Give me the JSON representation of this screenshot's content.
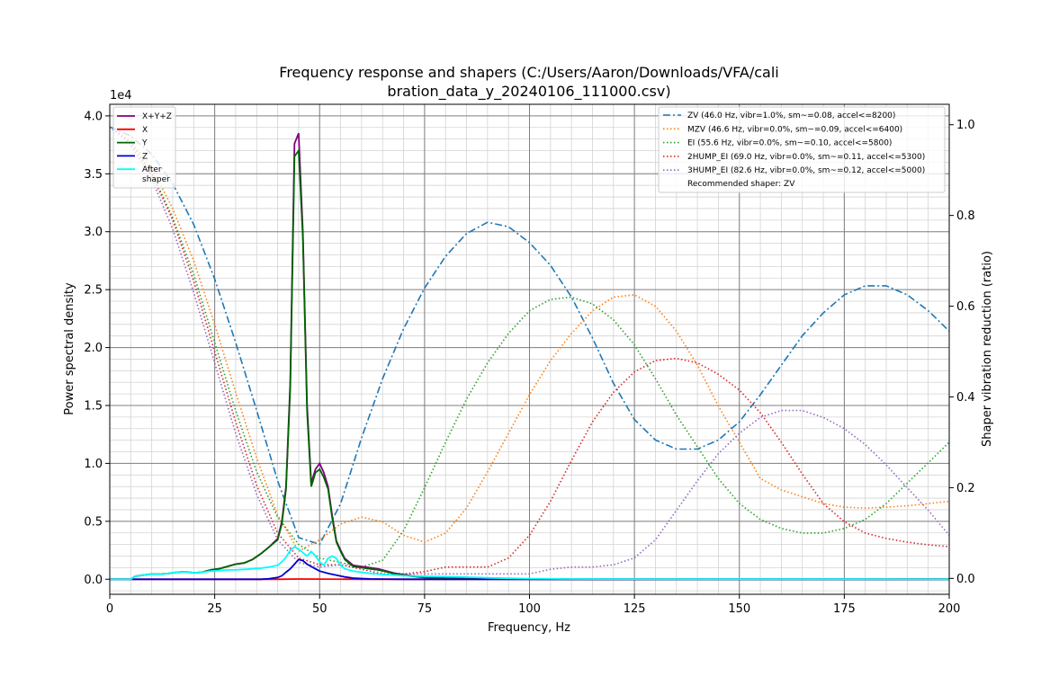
{
  "chart_data": {
    "type": "line",
    "title_line1": "Frequency response and shapers (C:/Users/Aaron/Downloads/VFA/cali",
    "title_line2": "bration_data_y_20240106_111000.csv)",
    "xlabel": "Frequency, Hz",
    "ylabel": "Power spectral density",
    "y2label": "Shaper vibration reduction (ratio)",
    "y_offset_label": "1e4",
    "xlim": [
      0,
      200
    ],
    "ylim": [
      -1300,
      41000
    ],
    "y2lim": [
      -0.035,
      1.045
    ],
    "x_ticks": [
      0,
      25,
      50,
      75,
      100,
      125,
      150,
      175,
      200
    ],
    "x_tick_labels": [
      "0",
      "25",
      "50",
      "75",
      "100",
      "125",
      "150",
      "175",
      "200"
    ],
    "y_ticks": [
      0,
      5000,
      10000,
      15000,
      20000,
      25000,
      30000,
      35000,
      40000
    ],
    "y_tick_labels": [
      "0.0",
      "0.5",
      "1.0",
      "1.5",
      "2.0",
      "2.5",
      "3.0",
      "3.5",
      "4.0"
    ],
    "y2_ticks": [
      0,
      0.2,
      0.4,
      0.6,
      0.8,
      1.0
    ],
    "y2_tick_labels": [
      "0.0",
      "0.2",
      "0.4",
      "0.6",
      "0.8",
      "1.0"
    ],
    "grid": true,
    "legend_left_placement": "upper-left",
    "legend_right_placement": "upper-right",
    "recommended_text": "Recommended shaper: ZV",
    "psd_series": [
      {
        "name": "X+Y+Z",
        "color": "#800080",
        "x": [
          0,
          5,
          6,
          8,
          10,
          12,
          14,
          16,
          18,
          20,
          22,
          24,
          26,
          28,
          30,
          32,
          34,
          36,
          38,
          40,
          41,
          42,
          43,
          44,
          45,
          46,
          47,
          48,
          49,
          50,
          51,
          52,
          53,
          54,
          55,
          56,
          58,
          60,
          62,
          64,
          66,
          68,
          70,
          72,
          75,
          80,
          85,
          90,
          95,
          100,
          110,
          120,
          140,
          160,
          180,
          200
        ],
        "y": [
          0,
          0,
          250,
          350,
          450,
          450,
          500,
          600,
          650,
          550,
          600,
          800,
          900,
          1100,
          1300,
          1400,
          1700,
          2200,
          2800,
          3500,
          5000,
          8000,
          17000,
          37600,
          38500,
          30000,
          15000,
          8300,
          9500,
          10000,
          9200,
          8000,
          5500,
          3300,
          2500,
          1800,
          1200,
          1100,
          1000,
          900,
          700,
          500,
          400,
          300,
          200,
          100,
          50,
          30,
          20,
          10,
          0,
          0,
          0,
          0,
          0,
          0
        ]
      },
      {
        "name": "X",
        "color": "#ff0000",
        "x": [
          0,
          40,
          45,
          50,
          60,
          100,
          200
        ],
        "y": [
          0,
          0,
          20,
          10,
          0,
          0,
          0
        ]
      },
      {
        "name": "Y",
        "color": "#006400",
        "x": [
          0,
          5,
          6,
          8,
          10,
          12,
          14,
          16,
          18,
          20,
          22,
          24,
          26,
          28,
          30,
          32,
          34,
          36,
          38,
          40,
          41,
          42,
          43,
          44,
          45,
          46,
          47,
          48,
          49,
          50,
          51,
          52,
          53,
          54,
          55,
          56,
          58,
          60,
          62,
          64,
          66,
          68,
          70,
          72,
          75,
          80,
          85,
          90,
          95,
          100,
          110,
          120,
          140,
          160,
          180,
          200
        ],
        "y": [
          0,
          0,
          250,
          350,
          450,
          450,
          500,
          600,
          650,
          550,
          600,
          800,
          900,
          1100,
          1300,
          1400,
          1700,
          2200,
          2800,
          3400,
          4800,
          7800,
          16500,
          36500,
          37000,
          29500,
          14500,
          8000,
          9200,
          9500,
          8800,
          7800,
          5300,
          3200,
          2400,
          1700,
          1100,
          1000,
          900,
          800,
          650,
          450,
          350,
          250,
          150,
          80,
          40,
          20,
          10,
          5,
          0,
          0,
          0,
          0,
          0,
          0
        ]
      },
      {
        "name": "Z",
        "color": "#0000cd",
        "x": [
          0,
          36,
          38,
          40,
          41,
          42,
          43,
          44,
          45,
          46,
          47,
          48,
          49,
          50,
          52,
          54,
          56,
          58,
          60,
          62,
          65,
          70,
          80,
          100,
          200
        ],
        "y": [
          0,
          0,
          50,
          150,
          300,
          600,
          900,
          1300,
          1700,
          1600,
          1300,
          1100,
          900,
          700,
          500,
          350,
          200,
          100,
          60,
          30,
          10,
          0,
          0,
          0,
          0
        ]
      },
      {
        "name": "After\nshaper",
        "color": "#00ffff",
        "x": [
          0,
          5,
          6,
          8,
          10,
          12,
          14,
          16,
          18,
          20,
          22,
          24,
          26,
          28,
          30,
          32,
          34,
          36,
          38,
          40,
          41,
          42,
          43,
          44,
          45,
          46,
          47,
          48,
          49,
          50,
          51,
          52,
          53,
          54,
          55,
          56,
          58,
          60,
          62,
          64,
          66,
          68,
          70,
          72,
          75,
          80,
          85,
          90,
          95,
          100,
          110,
          120,
          140,
          160,
          180,
          200
        ],
        "y": [
          0,
          0,
          250,
          350,
          450,
          450,
          500,
          600,
          650,
          550,
          600,
          700,
          750,
          800,
          800,
          850,
          900,
          950,
          1050,
          1200,
          1500,
          1900,
          2500,
          2800,
          2600,
          2300,
          2000,
          2400,
          2000,
          1500,
          1200,
          1800,
          2000,
          1800,
          1200,
          900,
          700,
          600,
          500,
          450,
          400,
          350,
          300,
          280,
          250,
          220,
          180,
          120,
          80,
          50,
          20,
          10,
          5,
          2,
          1,
          0
        ]
      }
    ],
    "shaper_series": [
      {
        "name": "ZV (46.0 Hz, vibr=1.0%, sm~=0.08, accel<=8200)",
        "color": "#1f77b4",
        "dash": "dashdot",
        "x": [
          0,
          5,
          10,
          15,
          20,
          25,
          30,
          35,
          40,
          45,
          50,
          55,
          60,
          65,
          70,
          75,
          80,
          85,
          90,
          95,
          100,
          105,
          110,
          115,
          120,
          125,
          130,
          135,
          140,
          145,
          150,
          155,
          160,
          165,
          170,
          175,
          180,
          185,
          190,
          195,
          200
        ],
        "y": [
          0.995,
          0.975,
          0.935,
          0.87,
          0.78,
          0.66,
          0.52,
          0.37,
          0.215,
          0.09,
          0.075,
          0.165,
          0.31,
          0.44,
          0.55,
          0.64,
          0.71,
          0.76,
          0.785,
          0.775,
          0.74,
          0.69,
          0.62,
          0.53,
          0.43,
          0.35,
          0.305,
          0.285,
          0.285,
          0.305,
          0.345,
          0.405,
          0.47,
          0.535,
          0.585,
          0.625,
          0.645,
          0.645,
          0.625,
          0.59,
          0.545
        ]
      },
      {
        "name": "MZV (46.6 Hz, vibr=0.0%, sm~=0.09, accel<=6400)",
        "color": "#ff7f0e",
        "dash": "dotted",
        "x": [
          0,
          5,
          10,
          15,
          20,
          25,
          30,
          35,
          40,
          45,
          50,
          55,
          60,
          65,
          70,
          75,
          80,
          85,
          90,
          95,
          100,
          105,
          110,
          115,
          120,
          125,
          130,
          135,
          140,
          145,
          150,
          155,
          160,
          165,
          170,
          175,
          180,
          185,
          190,
          195,
          200
        ],
        "y": [
          0.995,
          0.965,
          0.905,
          0.815,
          0.7,
          0.56,
          0.41,
          0.265,
          0.14,
          0.06,
          0.085,
          0.12,
          0.135,
          0.125,
          0.095,
          0.08,
          0.1,
          0.155,
          0.235,
          0.32,
          0.405,
          0.48,
          0.54,
          0.59,
          0.62,
          0.625,
          0.6,
          0.545,
          0.47,
          0.38,
          0.3,
          0.22,
          0.195,
          0.18,
          0.165,
          0.157,
          0.155,
          0.157,
          0.16,
          0.165,
          0.17
        ]
      },
      {
        "name": "EI (55.6 Hz, vibr=0.0%, sm~=0.10, accel<=5800)",
        "color": "#2ca02c",
        "dash": "dotted",
        "x": [
          0,
          5,
          10,
          15,
          20,
          25,
          30,
          35,
          40,
          45,
          50,
          55,
          60,
          65,
          70,
          75,
          80,
          85,
          90,
          95,
          100,
          105,
          110,
          115,
          120,
          125,
          130,
          135,
          140,
          145,
          150,
          155,
          160,
          165,
          170,
          175,
          180,
          185,
          190,
          195,
          200
        ],
        "y": [
          0.995,
          0.96,
          0.895,
          0.795,
          0.67,
          0.52,
          0.37,
          0.235,
          0.135,
          0.075,
          0.045,
          0.035,
          0.025,
          0.04,
          0.105,
          0.2,
          0.3,
          0.395,
          0.475,
          0.54,
          0.59,
          0.615,
          0.62,
          0.605,
          0.57,
          0.515,
          0.44,
          0.36,
          0.29,
          0.22,
          0.165,
          0.13,
          0.11,
          0.1,
          0.1,
          0.11,
          0.13,
          0.165,
          0.21,
          0.255,
          0.3
        ]
      },
      {
        "name": "2HUMP_EI (69.0 Hz, vibr=0.0%, sm~=0.11, accel<=5300)",
        "color": "#d62728",
        "dash": "dotted",
        "x": [
          0,
          5,
          10,
          15,
          20,
          25,
          30,
          35,
          40,
          45,
          50,
          55,
          60,
          65,
          70,
          75,
          80,
          85,
          90,
          95,
          100,
          105,
          110,
          115,
          120,
          125,
          130,
          135,
          140,
          145,
          150,
          155,
          160,
          165,
          170,
          175,
          180,
          185,
          190,
          195,
          200
        ],
        "y": [
          0.995,
          0.96,
          0.89,
          0.79,
          0.655,
          0.5,
          0.345,
          0.205,
          0.1,
          0.045,
          0.03,
          0.03,
          0.02,
          0.01,
          0.01,
          0.015,
          0.025,
          0.025,
          0.025,
          0.045,
          0.095,
          0.17,
          0.26,
          0.345,
          0.41,
          0.455,
          0.48,
          0.485,
          0.475,
          0.45,
          0.415,
          0.365,
          0.3,
          0.23,
          0.165,
          0.125,
          0.1,
          0.088,
          0.08,
          0.074,
          0.07
        ]
      },
      {
        "name": "3HUMP_EI (82.6 Hz, vibr=0.0%, sm~=0.12, accel<=5000)",
        "color": "#9467bd",
        "dash": "dotted",
        "x": [
          0,
          5,
          10,
          15,
          20,
          25,
          30,
          35,
          40,
          45,
          50,
          55,
          60,
          65,
          70,
          75,
          80,
          85,
          90,
          95,
          100,
          105,
          110,
          115,
          120,
          125,
          130,
          135,
          140,
          145,
          150,
          155,
          160,
          165,
          170,
          175,
          180,
          185,
          190,
          195,
          200
        ],
        "y": [
          0.995,
          0.955,
          0.88,
          0.77,
          0.63,
          0.475,
          0.32,
          0.185,
          0.085,
          0.035,
          0.025,
          0.03,
          0.025,
          0.015,
          0.01,
          0.01,
          0.01,
          0.01,
          0.01,
          0.01,
          0.01,
          0.02,
          0.025,
          0.025,
          0.03,
          0.045,
          0.085,
          0.15,
          0.215,
          0.275,
          0.32,
          0.355,
          0.37,
          0.37,
          0.355,
          0.33,
          0.295,
          0.25,
          0.2,
          0.15,
          0.095
        ]
      }
    ]
  }
}
